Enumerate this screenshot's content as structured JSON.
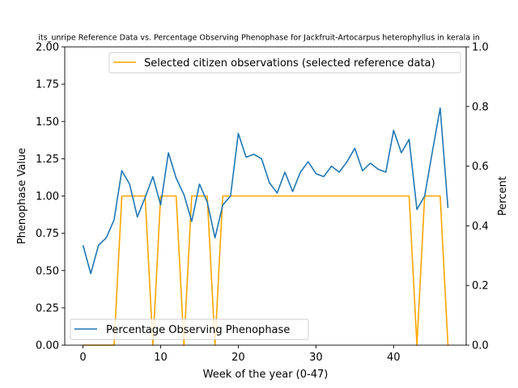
{
  "chart_data": {
    "type": "line",
    "title": "its_unripe Reference Data vs. Percentage Observing Phenophase for Jackfruit-Artocarpus heterophyllus in kerala in",
    "xlabel": "Week of the year (0-47)",
    "ylabel_left": "Phenophase Value",
    "ylabel_right": "Percent",
    "xlim": [
      -2.35,
      49.35
    ],
    "ylim_left": [
      0,
      2.0
    ],
    "ylim_right": [
      0,
      1.0
    ],
    "x_ticks": [
      0,
      10,
      20,
      30,
      40
    ],
    "y_left_ticks": [
      "0.00",
      "0.25",
      "0.50",
      "0.75",
      "1.00",
      "1.25",
      "1.50",
      "1.75",
      "2.00"
    ],
    "y_right_ticks": [
      "0.0",
      "0.2",
      "0.4",
      "0.6",
      "0.8",
      "1.0"
    ],
    "grid": false,
    "series": [
      {
        "name": "Selected citizen observations (selected reference data)",
        "color": "#ffa500",
        "axis": "left",
        "legend_position": "upper-right",
        "x": [
          0,
          1,
          2,
          3,
          4,
          5,
          6,
          7,
          8,
          9,
          10,
          11,
          12,
          13,
          14,
          15,
          16,
          17,
          18,
          19,
          20,
          21,
          22,
          23,
          24,
          25,
          26,
          27,
          28,
          29,
          30,
          31,
          32,
          33,
          34,
          35,
          36,
          37,
          38,
          39,
          40,
          41,
          42,
          43,
          44,
          45,
          46,
          47
        ],
        "values": [
          0,
          0,
          0,
          0,
          0,
          1,
          1,
          1,
          1,
          0,
          1,
          1,
          1,
          0,
          1,
          1,
          1,
          0,
          1,
          1,
          1,
          1,
          1,
          1,
          1,
          1,
          1,
          1,
          1,
          1,
          1,
          1,
          1,
          1,
          1,
          1,
          1,
          1,
          1,
          1,
          1,
          1,
          1,
          0,
          1,
          1,
          1,
          0
        ]
      },
      {
        "name": "Percentage Observing Phenophase",
        "color": "#1f77b4",
        "axis": "right",
        "legend_position": "lower-left",
        "x": [
          0,
          1,
          2,
          3,
          4,
          5,
          6,
          7,
          8,
          9,
          10,
          11,
          12,
          13,
          14,
          15,
          16,
          17,
          18,
          19,
          20,
          21,
          22,
          23,
          24,
          25,
          26,
          27,
          28,
          29,
          30,
          31,
          32,
          33,
          34,
          35,
          36,
          37,
          38,
          39,
          40,
          41,
          42,
          43,
          44,
          45,
          46,
          47
        ],
        "values": [
          0.335,
          0.24,
          0.335,
          0.36,
          0.42,
          0.585,
          0.54,
          0.43,
          0.495,
          0.565,
          0.47,
          0.645,
          0.56,
          0.505,
          0.415,
          0.54,
          0.48,
          0.36,
          0.47,
          0.5,
          0.71,
          0.63,
          0.64,
          0.625,
          0.545,
          0.51,
          0.58,
          0.515,
          0.58,
          0.615,
          0.575,
          0.565,
          0.6,
          0.58,
          0.615,
          0.66,
          0.585,
          0.61,
          0.59,
          0.58,
          0.72,
          0.645,
          0.69,
          0.455,
          0.5,
          0.65,
          0.795,
          0.46
        ]
      }
    ]
  }
}
